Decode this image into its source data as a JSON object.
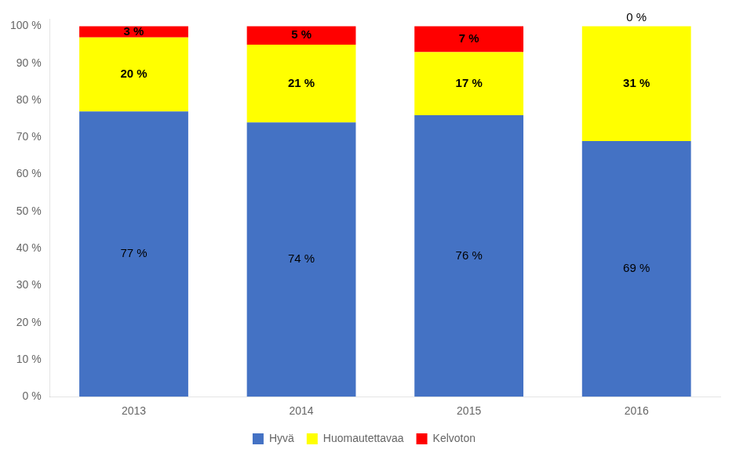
{
  "chart_data": {
    "type": "bar",
    "categories": [
      "2013",
      "2014",
      "2015",
      "2016"
    ],
    "series": [
      {
        "name": "Hyvä",
        "color": "#4472C4",
        "values": [
          77,
          74,
          76,
          69
        ],
        "value_labels": [
          "77 %",
          "74 %",
          "76 %",
          "69 %"
        ]
      },
      {
        "name": "Huomautettavaa",
        "color": "#FFFF00",
        "values": [
          20,
          21,
          17,
          31
        ],
        "value_labels": [
          "20 %",
          "21 %",
          "17 %",
          "31 %"
        ]
      },
      {
        "name": "Kelvoton",
        "color": "#FF0000",
        "values": [
          3,
          5,
          7,
          0
        ],
        "value_labels": [
          "3 %",
          "5 %",
          "7 %",
          "0 %"
        ]
      }
    ],
    "stacked": true,
    "ylim": [
      0,
      102
    ],
    "yticks": [
      {
        "value": 0,
        "label": "0 %"
      },
      {
        "value": 10,
        "label": "10 %"
      },
      {
        "value": 20,
        "label": "20 %"
      },
      {
        "value": 30,
        "label": "30 %"
      },
      {
        "value": 40,
        "label": "40 %"
      },
      {
        "value": 50,
        "label": "50 %"
      },
      {
        "value": 60,
        "label": "60 %"
      },
      {
        "value": 70,
        "label": "70 %"
      },
      {
        "value": 80,
        "label": "80 %"
      },
      {
        "value": 90,
        "label": "90 %"
      },
      {
        "value": 100,
        "label": "100 %"
      }
    ],
    "grid": false,
    "legend": "bottom",
    "data_labels": true
  }
}
